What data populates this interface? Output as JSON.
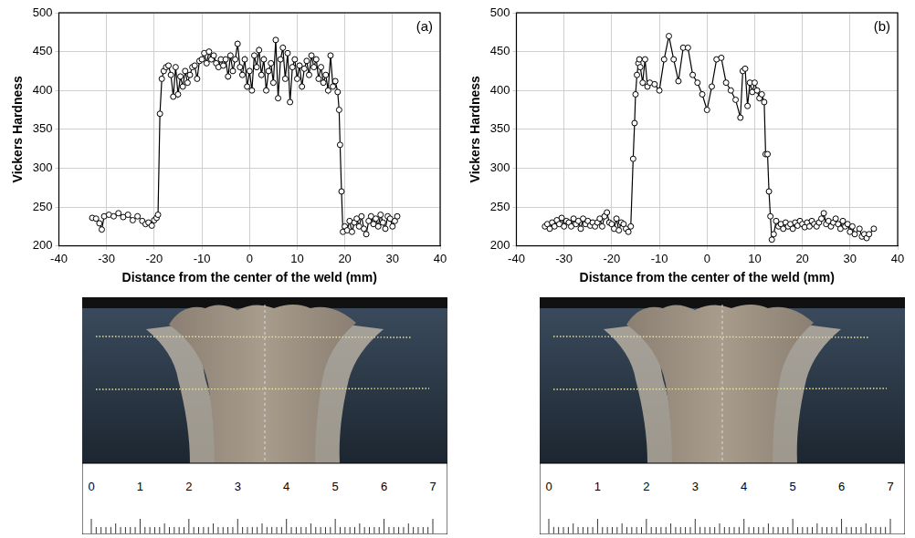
{
  "chart_data": [
    {
      "type": "line",
      "panel_label": "(a)",
      "x_label": "Distance from the center of the weld (mm)",
      "y_label": "Vickers Hardness",
      "xlim": [
        -40,
        40
      ],
      "xticks": [
        -40,
        -30,
        -20,
        -10,
        0,
        10,
        20,
        30,
        40
      ],
      "ylim": [
        200,
        500
      ],
      "yticks": [
        200,
        250,
        300,
        350,
        400,
        450,
        500
      ],
      "grid": true,
      "marker": "circle",
      "color": "#000000",
      "x": [
        -33,
        -32.2,
        -31.5,
        -31,
        -30.5,
        -29.5,
        -28.5,
        -27.5,
        -26.5,
        -25.5,
        -24.5,
        -23.5,
        -22.5,
        -21.8,
        -21.2,
        -20.5,
        -20,
        -19.5,
        -19.2,
        -18.8,
        -18.4,
        -18,
        -17.5,
        -17,
        -16.5,
        -16,
        -15.5,
        -15,
        -14.5,
        -14,
        -13.5,
        -13,
        -12.5,
        -12,
        -11.5,
        -11,
        -10.5,
        -10,
        -9.5,
        -9,
        -8.5,
        -8,
        -7.5,
        -7,
        -6.5,
        -6,
        -5.5,
        -5,
        -4.5,
        -4,
        -3.5,
        -3,
        -2.5,
        -2,
        -1.5,
        -1,
        -0.5,
        0,
        0.5,
        1,
        1.5,
        2,
        2.5,
        3,
        3.5,
        4,
        4.5,
        5,
        5.5,
        6,
        6.5,
        7,
        7.5,
        8,
        8.5,
        9,
        9.5,
        10,
        10.5,
        11,
        11.5,
        12,
        12.5,
        13,
        13.5,
        14,
        14.5,
        15,
        15.5,
        16,
        16.5,
        17,
        17.5,
        18,
        18.5,
        18.8,
        19,
        19.3,
        19.6,
        20,
        20.5,
        21,
        21.5,
        22,
        22.5,
        23,
        23.5,
        24,
        24.5,
        25,
        25.5,
        26,
        26.5,
        27,
        27.5,
        28,
        28.5,
        29,
        29.5,
        30,
        30.5,
        31
      ],
      "values": [
        236,
        235,
        229,
        221,
        238,
        240,
        238,
        242,
        237,
        240,
        233,
        238,
        232,
        228,
        230,
        226,
        233,
        236,
        240,
        370,
        415,
        425,
        430,
        432,
        420,
        392,
        430,
        395,
        418,
        405,
        425,
        410,
        420,
        430,
        432,
        415,
        438,
        440,
        448,
        435,
        450,
        440,
        445,
        435,
        430,
        440,
        432,
        440,
        418,
        445,
        425,
        440,
        460,
        430,
        420,
        440,
        405,
        425,
        400,
        445,
        430,
        452,
        420,
        440,
        400,
        425,
        435,
        410,
        465,
        390,
        440,
        455,
        415,
        448,
        385,
        430,
        440,
        415,
        432,
        405,
        428,
        438,
        420,
        445,
        430,
        440,
        415,
        430,
        410,
        420,
        400,
        445,
        405,
        412,
        398,
        375,
        330,
        270,
        218,
        225,
        220,
        232,
        218,
        230,
        235,
        225,
        238,
        222,
        215,
        232,
        238,
        228,
        235,
        225,
        240,
        230,
        222,
        238,
        235,
        225,
        232,
        238
      ]
    },
    {
      "type": "line",
      "panel_label": "(b)",
      "x_label": "Distance from the center of the weld (mm)",
      "y_label": "Vickers Hardness",
      "xlim": [
        -40,
        40
      ],
      "xticks": [
        -40,
        -30,
        -20,
        -10,
        0,
        10,
        20,
        30,
        40
      ],
      "ylim": [
        200,
        500
      ],
      "yticks": [
        200,
        250,
        300,
        350,
        400,
        450,
        500
      ],
      "grid": true,
      "marker": "circle",
      "color": "#000000",
      "x": [
        -34,
        -33.5,
        -33,
        -32.5,
        -32,
        -31.5,
        -31,
        -30.5,
        -30,
        -29.5,
        -29,
        -28.5,
        -28,
        -27.5,
        -27,
        -26.5,
        -26,
        -25.5,
        -25,
        -24.5,
        -24,
        -23.5,
        -23,
        -22.5,
        -22,
        -21.5,
        -21,
        -20.5,
        -20,
        -19.5,
        -19,
        -18.5,
        -18,
        -17.5,
        -17,
        -16.5,
        -16,
        -15.5,
        -15.2,
        -15,
        -14.7,
        -14.4,
        -14.2,
        -14,
        -13.5,
        -13,
        -12.5,
        -12,
        -11,
        -10,
        -9,
        -8,
        -7,
        -6,
        -5,
        -4,
        -3,
        -2,
        -1,
        0,
        1,
        2,
        3,
        4,
        5,
        6,
        7,
        7.5,
        8,
        8.5,
        9,
        9.5,
        10,
        10.5,
        11,
        11.5,
        12,
        12.3,
        12.7,
        13,
        13.3,
        13.6,
        14,
        14.5,
        15,
        15.5,
        16,
        16.5,
        17,
        17.5,
        18,
        18.5,
        19,
        19.5,
        20,
        20.5,
        21,
        21.5,
        22,
        22.5,
        23,
        23.5,
        24,
        24.5,
        25,
        25.5,
        26,
        26.5,
        27,
        27.5,
        28,
        28.5,
        29,
        29.5,
        30,
        30.5,
        31,
        32,
        32.5,
        33,
        33.5,
        34,
        35
      ],
      "values": [
        225,
        228,
        222,
        230,
        225,
        233,
        228,
        236,
        225,
        232,
        230,
        225,
        235,
        228,
        232,
        222,
        235,
        228,
        232,
        226,
        230,
        225,
        230,
        235,
        225,
        238,
        243,
        230,
        228,
        222,
        235,
        220,
        230,
        228,
        222,
        218,
        225,
        312,
        358,
        395,
        420,
        435,
        440,
        430,
        410,
        440,
        405,
        410,
        408,
        400,
        440,
        470,
        440,
        412,
        455,
        455,
        420,
        410,
        395,
        375,
        405,
        440,
        442,
        410,
        400,
        388,
        365,
        425,
        428,
        380,
        410,
        398,
        410,
        400,
        390,
        395,
        385,
        318,
        318,
        270,
        238,
        208,
        215,
        232,
        225,
        228,
        222,
        230,
        225,
        228,
        222,
        230,
        226,
        232,
        228,
        224,
        230,
        225,
        232,
        228,
        225,
        230,
        235,
        242,
        228,
        232,
        225,
        230,
        235,
        228,
        222,
        232,
        225,
        228,
        218,
        225,
        215,
        222,
        212,
        215,
        210,
        215,
        222
      ]
    }
  ],
  "macrographs": [
    {
      "ruler_labels": [
        0,
        1,
        2,
        3,
        4,
        5,
        6,
        7
      ]
    },
    {
      "ruler_labels": [
        0,
        1,
        2,
        3,
        4,
        5,
        6,
        7
      ]
    }
  ]
}
